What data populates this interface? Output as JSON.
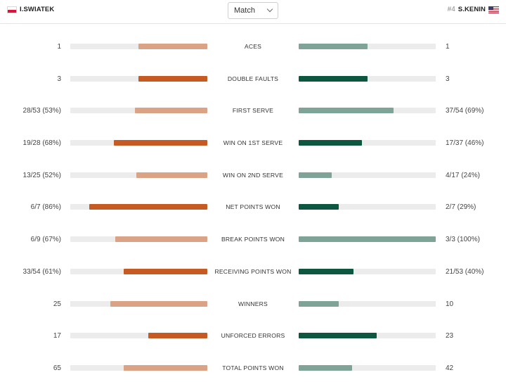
{
  "header": {
    "player1": {
      "name": "I.SWIATEK",
      "flag": "poland-flag"
    },
    "player2": {
      "seed": "#4",
      "name": "S.KENIN",
      "flag": "usa-flag"
    },
    "filter": {
      "selected": "Match"
    }
  },
  "colors": {
    "p1_strong": "#c55a22",
    "p1_light": "#dba386",
    "p2_strong": "#0d5740",
    "p2_light": "#7fa397",
    "track": "#ececec"
  },
  "stats": [
    {
      "label": "ACES",
      "p1": "1",
      "p2": "1",
      "p1_frac": 0.5,
      "p2_frac": 0.5,
      "p1_lead": false,
      "p2_lead": false
    },
    {
      "label": "DOUBLE FAULTS",
      "p1": "3",
      "p2": "3",
      "p1_frac": 0.5,
      "p2_frac": 0.5,
      "p1_lead": true,
      "p2_lead": true
    },
    {
      "label": "FIRST SERVE",
      "p1": "28/53 (53%)",
      "p2": "37/54 (69%)",
      "p1_frac": 0.53,
      "p2_frac": 0.69,
      "p1_lead": false,
      "p2_lead": false
    },
    {
      "label": "WIN ON 1ST SERVE",
      "p1": "19/28 (68%)",
      "p2": "17/37 (46%)",
      "p1_frac": 0.68,
      "p2_frac": 0.46,
      "p1_lead": true,
      "p2_lead": true
    },
    {
      "label": "WIN ON 2ND SERVE",
      "p1": "13/25 (52%)",
      "p2": "4/17 (24%)",
      "p1_frac": 0.52,
      "p2_frac": 0.24,
      "p1_lead": false,
      "p2_lead": false
    },
    {
      "label": "NET POINTS WON",
      "p1": "6/7 (86%)",
      "p2": "2/7 (29%)",
      "p1_frac": 0.86,
      "p2_frac": 0.29,
      "p1_lead": true,
      "p2_lead": true
    },
    {
      "label": "BREAK POINTS WON",
      "p1": "6/9 (67%)",
      "p2": "3/3 (100%)",
      "p1_frac": 0.67,
      "p2_frac": 1.0,
      "p1_lead": false,
      "p2_lead": false
    },
    {
      "label": "RECEIVING POINTS WON",
      "p1": "33/54 (61%)",
      "p2": "21/53 (40%)",
      "p1_frac": 0.61,
      "p2_frac": 0.4,
      "p1_lead": true,
      "p2_lead": true
    },
    {
      "label": "WINNERS",
      "p1": "25",
      "p2": "10",
      "p1_frac": 0.71,
      "p2_frac": 0.29,
      "p1_lead": false,
      "p2_lead": false
    },
    {
      "label": "UNFORCED ERRORS",
      "p1": "17",
      "p2": "23",
      "p1_frac": 0.43,
      "p2_frac": 0.57,
      "p1_lead": true,
      "p2_lead": true
    },
    {
      "label": "TOTAL POINTS WON",
      "p1": "65",
      "p2": "42",
      "p1_frac": 0.61,
      "p2_frac": 0.39,
      "p1_lead": false,
      "p2_lead": false
    }
  ]
}
